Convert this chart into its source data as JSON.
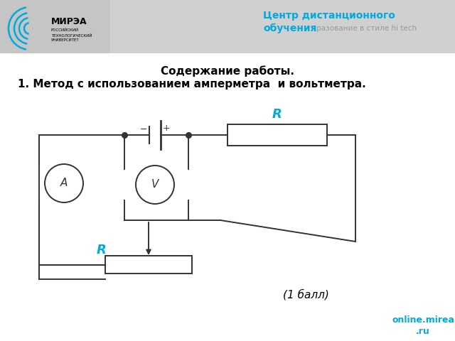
{
  "title_line1": "Содержание работы.",
  "title_line2": "1. Метод с использованием амперметра  и вольтметра.",
  "score_text": "(1 балл)",
  "header_text1": "Центр дистанционного",
  "header_text2": "обучения",
  "header_text3": "разование в стиле hi tech",
  "label_R_top": "R",
  "label_R_bot": "R",
  "label_A": "A",
  "label_V": "V",
  "main_bg": "#ffffff",
  "header_bg": "#d8d8d8",
  "circuit_color": "#333333",
  "cyan_color": "#00aadd",
  "gray_text": "#999999"
}
